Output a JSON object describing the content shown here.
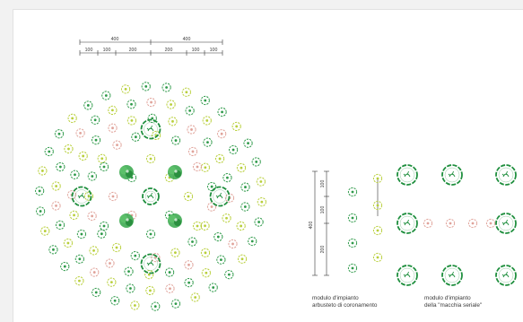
{
  "dimensions": {
    "top_total": [
      "400",
      "400"
    ],
    "top_segments": [
      "100",
      "100",
      "200",
      "200",
      "100",
      "100"
    ],
    "side_total": "400",
    "side_segments": [
      "100",
      "100",
      "200"
    ]
  },
  "labels": {
    "module_left_line1": "modulo d'impianto",
    "module_left_line2": "arbusteto di coronamento",
    "module_right_line1": "modulo d'impianto",
    "module_right_line2": "della \"macchia seriale\""
  },
  "legend_colors": {
    "shrub_green": "#2f9a4a",
    "shrub_lime": "#b8cf3a",
    "shrub_pink": "#e0a39a",
    "canopy_tree": "#1f8f3e",
    "dimension_line": "#333333"
  },
  "symbol_types": [
    "large-tree-icon",
    "filled-shrub-icon",
    "green-shrub-icon",
    "lime-shrub-icon",
    "pink-shrub-icon"
  ]
}
